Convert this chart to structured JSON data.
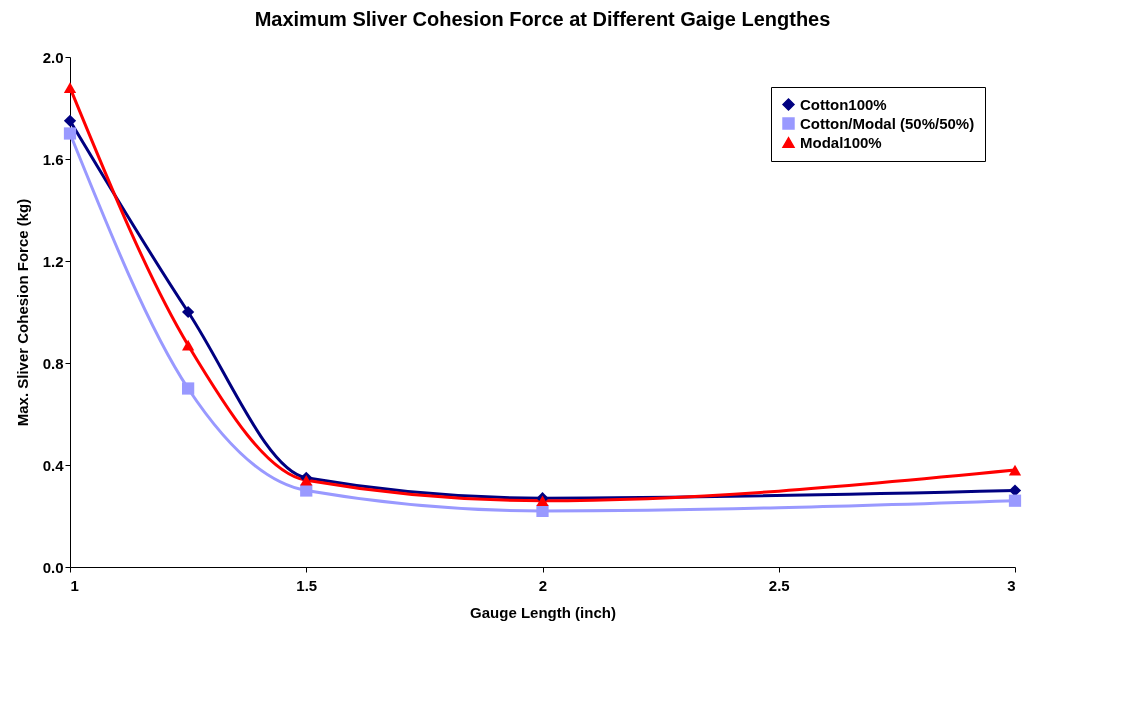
{
  "chart_data": {
    "type": "line",
    "title": "Maximum Sliver Cohesion Force at Different Gaige Lengthes",
    "xlabel": "Gauge Length (inch)",
    "ylabel": "Max. Sliver Cohesion Force (kg)",
    "x": [
      1,
      1.25,
      1.5,
      2,
      3
    ],
    "series": [
      {
        "name": "Cotton100%",
        "color": "#000080",
        "marker": "diamond",
        "values": [
          1.75,
          1.0,
          0.35,
          0.27,
          0.3
        ]
      },
      {
        "name": "Cotton/Modal (50%/50%)",
        "color": "#9999ff",
        "marker": "square",
        "values": [
          1.7,
          0.7,
          0.3,
          0.22,
          0.26
        ]
      },
      {
        "name": "Modal100%",
        "color": "#ff0000",
        "marker": "triangle",
        "values": [
          1.88,
          0.87,
          0.34,
          0.26,
          0.38
        ]
      }
    ],
    "xlim": [
      1,
      3
    ],
    "xticks": [
      1,
      1.5,
      2,
      2.5,
      3
    ],
    "ylim": [
      0,
      2
    ],
    "yticks": [
      {
        "value": 0,
        "label": "0.0"
      },
      0.4,
      0.8,
      1.2,
      1.6,
      {
        "value": 2,
        "label": "2.0"
      }
    ],
    "grid": false,
    "legend": "top right",
    "line_style": "solid"
  }
}
